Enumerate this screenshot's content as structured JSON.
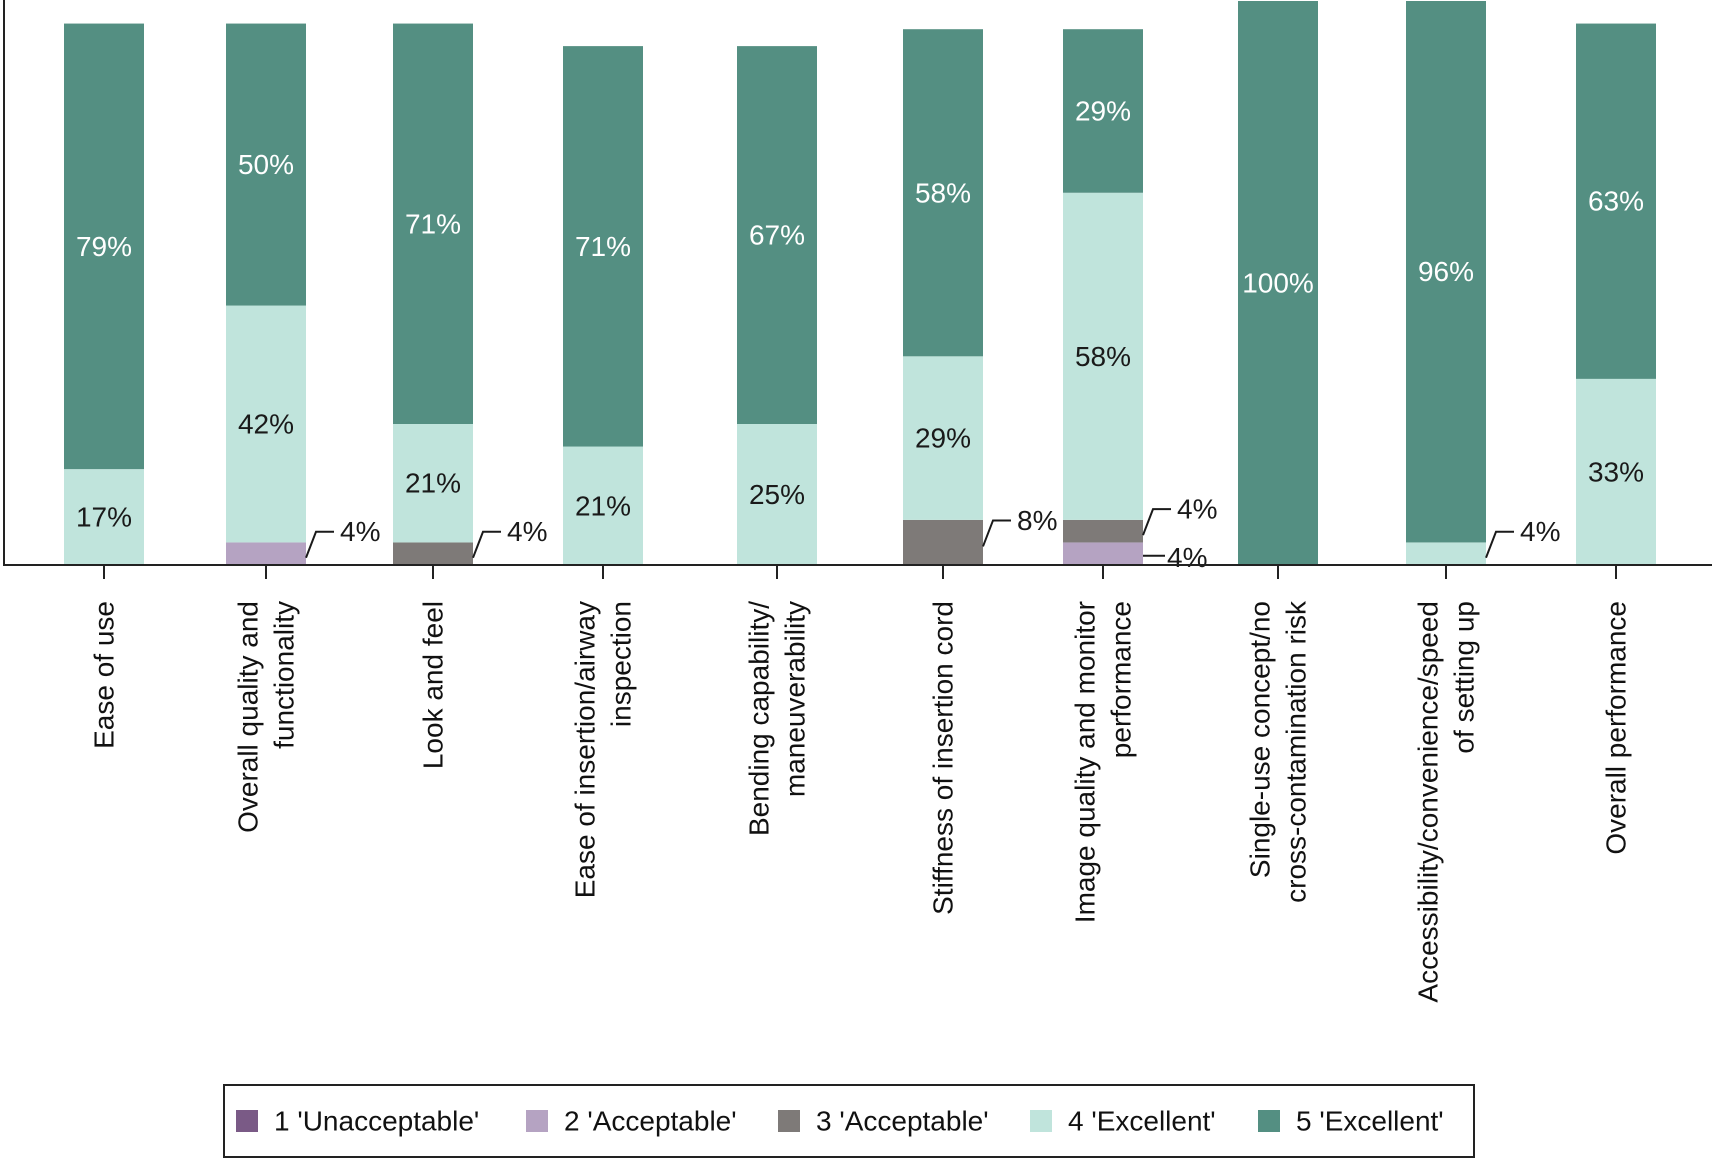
{
  "chart_data": {
    "type": "bar",
    "stacked": true,
    "orientation": "vertical",
    "unit": "%",
    "ylim": [
      0,
      100
    ],
    "grid": false,
    "legend_position": "bottom",
    "categories": [
      [
        "Ease of use"
      ],
      [
        "Overall quality and",
        "functionality"
      ],
      [
        "Look and feel"
      ],
      [
        "Ease of insertion/airway",
        "inspection"
      ],
      [
        "Bending capability/",
        "maneuverability"
      ],
      [
        "Stiffness of insertion cord"
      ],
      [
        "Image quality and monitor",
        "performance"
      ],
      [
        "Single-use concept/no",
        "cross-contamination risk"
      ],
      [
        "Accessibility/convenience/speed",
        "of setting up"
      ],
      [
        "Overall performance"
      ]
    ],
    "series": [
      {
        "name": "1 'Unacceptable'",
        "color": "#7a5a86",
        "values": [
          0,
          0,
          0,
          0,
          0,
          0,
          0,
          0,
          0,
          0
        ]
      },
      {
        "name": "2 'Acceptable'",
        "color": "#b5a3c2",
        "values": [
          0,
          4,
          0,
          0,
          0,
          0,
          4,
          0,
          0,
          0
        ]
      },
      {
        "name": "3 'Acceptable'",
        "color": "#7e7a78",
        "values": [
          0,
          0,
          4,
          0,
          0,
          8,
          4,
          0,
          0,
          0
        ]
      },
      {
        "name": "4 'Excellent'",
        "color": "#c0e4dc",
        "values": [
          17,
          42,
          21,
          21,
          25,
          29,
          58,
          0,
          4,
          33
        ]
      },
      {
        "name": "5 'Excellent'",
        "color": "#548f82",
        "values": [
          79,
          50,
          71,
          71,
          67,
          58,
          29,
          100,
          96,
          63
        ]
      }
    ],
    "data_labels": [
      [
        {
          "series": 3,
          "text": "17%"
        },
        {
          "series": 4,
          "text": "79%"
        }
      ],
      [
        {
          "series": 1,
          "text": "4%",
          "callout": true
        },
        {
          "series": 3,
          "text": "42%"
        },
        {
          "series": 4,
          "text": "50%"
        }
      ],
      [
        {
          "series": 2,
          "text": "4%",
          "callout": true
        },
        {
          "series": 3,
          "text": "21%"
        },
        {
          "series": 4,
          "text": "71%"
        }
      ],
      [
        {
          "series": 3,
          "text": "21%"
        },
        {
          "series": 4,
          "text": "71%"
        }
      ],
      [
        {
          "series": 3,
          "text": "25%"
        },
        {
          "series": 4,
          "text": "67%"
        }
      ],
      [
        {
          "series": 2,
          "text": "8%",
          "callout": true
        },
        {
          "series": 3,
          "text": "29%"
        },
        {
          "series": 4,
          "text": "58%"
        }
      ],
      [
        {
          "series": 1,
          "text": "4%",
          "callout": true
        },
        {
          "series": 2,
          "text": "4%",
          "callout": true
        },
        {
          "series": 3,
          "text": "58%"
        },
        {
          "series": 4,
          "text": "29%"
        }
      ],
      [
        {
          "series": 4,
          "text": "100%"
        }
      ],
      [
        {
          "series": 3,
          "text": "4%",
          "callout": true
        },
        {
          "series": 4,
          "text": "96%"
        }
      ],
      [
        {
          "series": 3,
          "text": "33%"
        },
        {
          "series": 4,
          "text": "63%"
        }
      ]
    ]
  }
}
